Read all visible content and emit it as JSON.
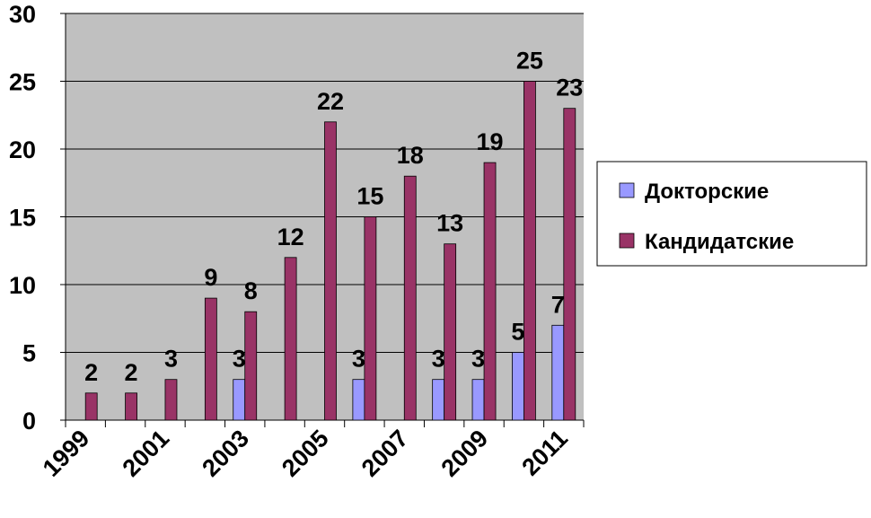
{
  "chart_data": {
    "type": "bar",
    "categories": [
      "1999",
      null,
      "2001",
      null,
      "2003",
      null,
      "2005",
      null,
      "2007",
      null,
      "2009",
      null,
      "2011"
    ],
    "series": [
      {
        "name": "Докторские",
        "color": "#9999ff",
        "values": [
          null,
          null,
          null,
          null,
          3,
          null,
          null,
          3,
          null,
          3,
          3,
          5,
          7
        ]
      },
      {
        "name": "Кандидатские",
        "color": "#993366",
        "values": [
          2,
          2,
          3,
          9,
          8,
          12,
          22,
          15,
          18,
          13,
          19,
          25,
          23
        ]
      }
    ],
    "ylim": [
      0,
      30
    ],
    "yticks": [
      0,
      5,
      10,
      15,
      20,
      25,
      30
    ],
    "grid": true,
    "legend": "right"
  }
}
